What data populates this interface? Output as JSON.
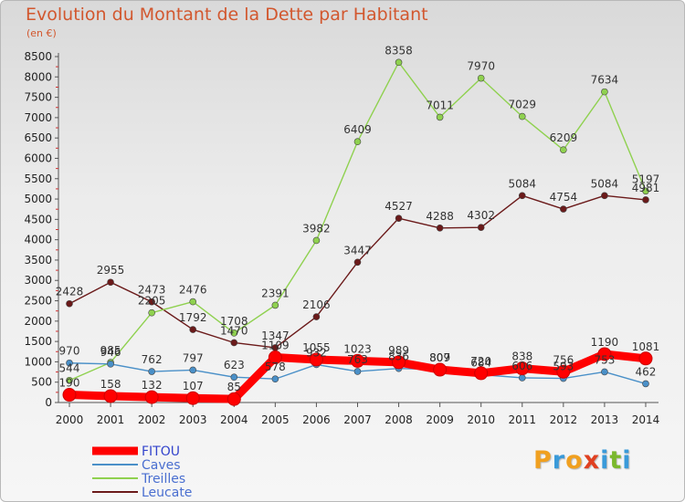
{
  "title": "Evolution du Montant de la Dette par Habitant",
  "subtitle": "(en €)",
  "logo": {
    "letters": [
      "P",
      "r",
      "o",
      "x",
      "i",
      "t",
      "i"
    ],
    "colors": [
      "#f0a020",
      "#3a9ad9",
      "#f0a020",
      "#e04020",
      "#3a9ad9",
      "#7ab82c",
      "#3a9ad9"
    ]
  },
  "chart_data": {
    "type": "line",
    "title": "Evolution du Montant de la Dette par Habitant",
    "subtitle": "(en €)",
    "xlabel": "",
    "ylabel": "",
    "ylim": [
      0,
      8500
    ],
    "yticks": [
      0,
      500,
      1000,
      1500,
      2000,
      2500,
      3000,
      3500,
      4000,
      4500,
      5000,
      5500,
      6000,
      6500,
      7000,
      7500,
      8000,
      8500
    ],
    "grid": false,
    "legend_position": "bottom-left",
    "x": [
      "2000",
      "2001",
      "2002",
      "2003",
      "2004",
      "2005",
      "2006",
      "2007",
      "2008",
      "2009",
      "2010",
      "2011",
      "2012",
      "2013",
      "2014"
    ],
    "series": [
      {
        "name": "FITOU",
        "color": "#ff0000",
        "values": [
          190,
          158,
          132,
          107,
          85,
          1109,
          1055,
          1023,
          989,
          807,
          720,
          838,
          756,
          1190,
          1081
        ]
      },
      {
        "name": "Caves",
        "color": "#4a90c8",
        "values": [
          970,
          946,
          762,
          797,
          623,
          578,
          932,
          763,
          836,
          809,
          684,
          606,
          593,
          753,
          462
        ]
      },
      {
        "name": "Treilles",
        "color": "#8fd14f",
        "values": [
          544,
          985,
          2205,
          2476,
          1708,
          2391,
          3982,
          6409,
          8358,
          7011,
          7970,
          7029,
          6209,
          7634,
          5197
        ]
      },
      {
        "name": "Leucate",
        "color": "#6b1a1a",
        "values": [
          2428,
          2955,
          2473,
          1792,
          1470,
          1347,
          2106,
          3447,
          4527,
          4288,
          4302,
          5084,
          4754,
          5084,
          4981
        ]
      }
    ]
  }
}
